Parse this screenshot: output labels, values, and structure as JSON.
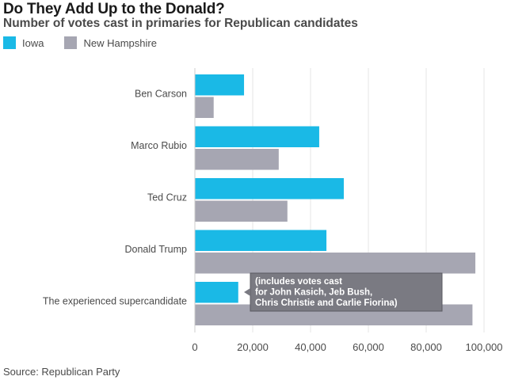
{
  "chart_data": {
    "type": "bar",
    "orientation": "horizontal",
    "title": "Do They Add Up to the Donald?",
    "subtitle": "Number of votes cast in primaries for Republican candidates",
    "categories": [
      "Ben Carson",
      "Marco Rubio",
      "Ted Cruz",
      "Donald Trump",
      "The experienced supercandidate"
    ],
    "series": [
      {
        "name": "Iowa",
        "color": "#1ab9e6",
        "values": [
          17000,
          43000,
          51500,
          45500,
          15000
        ]
      },
      {
        "name": "New Hampshire",
        "color": "#a6a6b2",
        "values": [
          6500,
          29000,
          32000,
          97000,
          96000
        ]
      }
    ],
    "xlim": [
      0,
      100000
    ],
    "ticks": [
      "0",
      "20,000",
      "40,000",
      "60,000",
      "80,000",
      "100,000"
    ],
    "tick_values": [
      0,
      20000,
      40000,
      60000,
      80000,
      100000
    ],
    "grid": true,
    "legend_position": "top-left",
    "annotation": {
      "category": "The experienced supercandidate",
      "lines": [
        "(includes votes cast",
        "for John Kasich, Jeb Bush,",
        "Chris Christie and Carlie Fiorina)"
      ]
    }
  },
  "source": "Source: Republican Party"
}
